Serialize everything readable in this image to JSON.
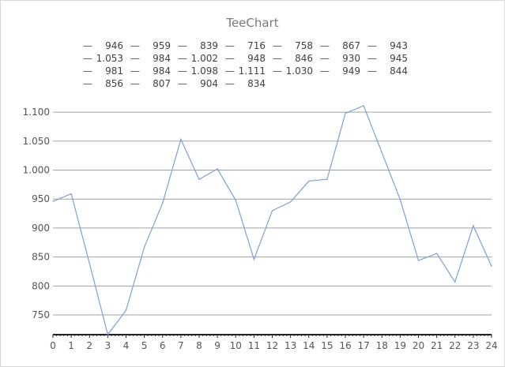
{
  "chart_data": {
    "type": "line",
    "title": "TeeChart",
    "xlabel": "",
    "ylabel": "",
    "x": [
      0,
      1,
      2,
      3,
      4,
      5,
      6,
      7,
      8,
      9,
      10,
      11,
      12,
      13,
      14,
      15,
      16,
      17,
      18,
      19,
      20,
      21,
      22,
      23,
      24
    ],
    "series": [
      {
        "values": [
          946,
          959,
          839,
          716,
          758,
          867,
          943,
          1053,
          984,
          1002,
          948,
          846,
          930,
          945,
          981,
          984,
          1098,
          1111,
          1030,
          949,
          844,
          856,
          807,
          904,
          834
        ],
        "color": "#7f9fd8"
      }
    ],
    "legend_entries": [
      "946",
      "959",
      "839",
      "716",
      "758",
      "867",
      "943",
      "1.053",
      "984",
      "1.002",
      "948",
      "846",
      "930",
      "945",
      "981",
      "984",
      "1.098",
      "1.111",
      "1.030",
      "949",
      "844",
      "856",
      "807",
      "904",
      "834"
    ],
    "y_ticks": [
      "750",
      "800",
      "850",
      "900",
      "950",
      "1.000",
      "1.050",
      "1.100"
    ],
    "x_ticks": [
      "0",
      "1",
      "2",
      "3",
      "4",
      "5",
      "6",
      "7",
      "8",
      "9",
      "10",
      "11",
      "12",
      "13",
      "14",
      "15",
      "16",
      "17",
      "18",
      "19",
      "20",
      "21",
      "22",
      "23",
      "24"
    ],
    "ylim": [
      716,
      1111
    ],
    "xlim": [
      0,
      24
    ],
    "grid": "horizontal",
    "legend_position": "top"
  }
}
